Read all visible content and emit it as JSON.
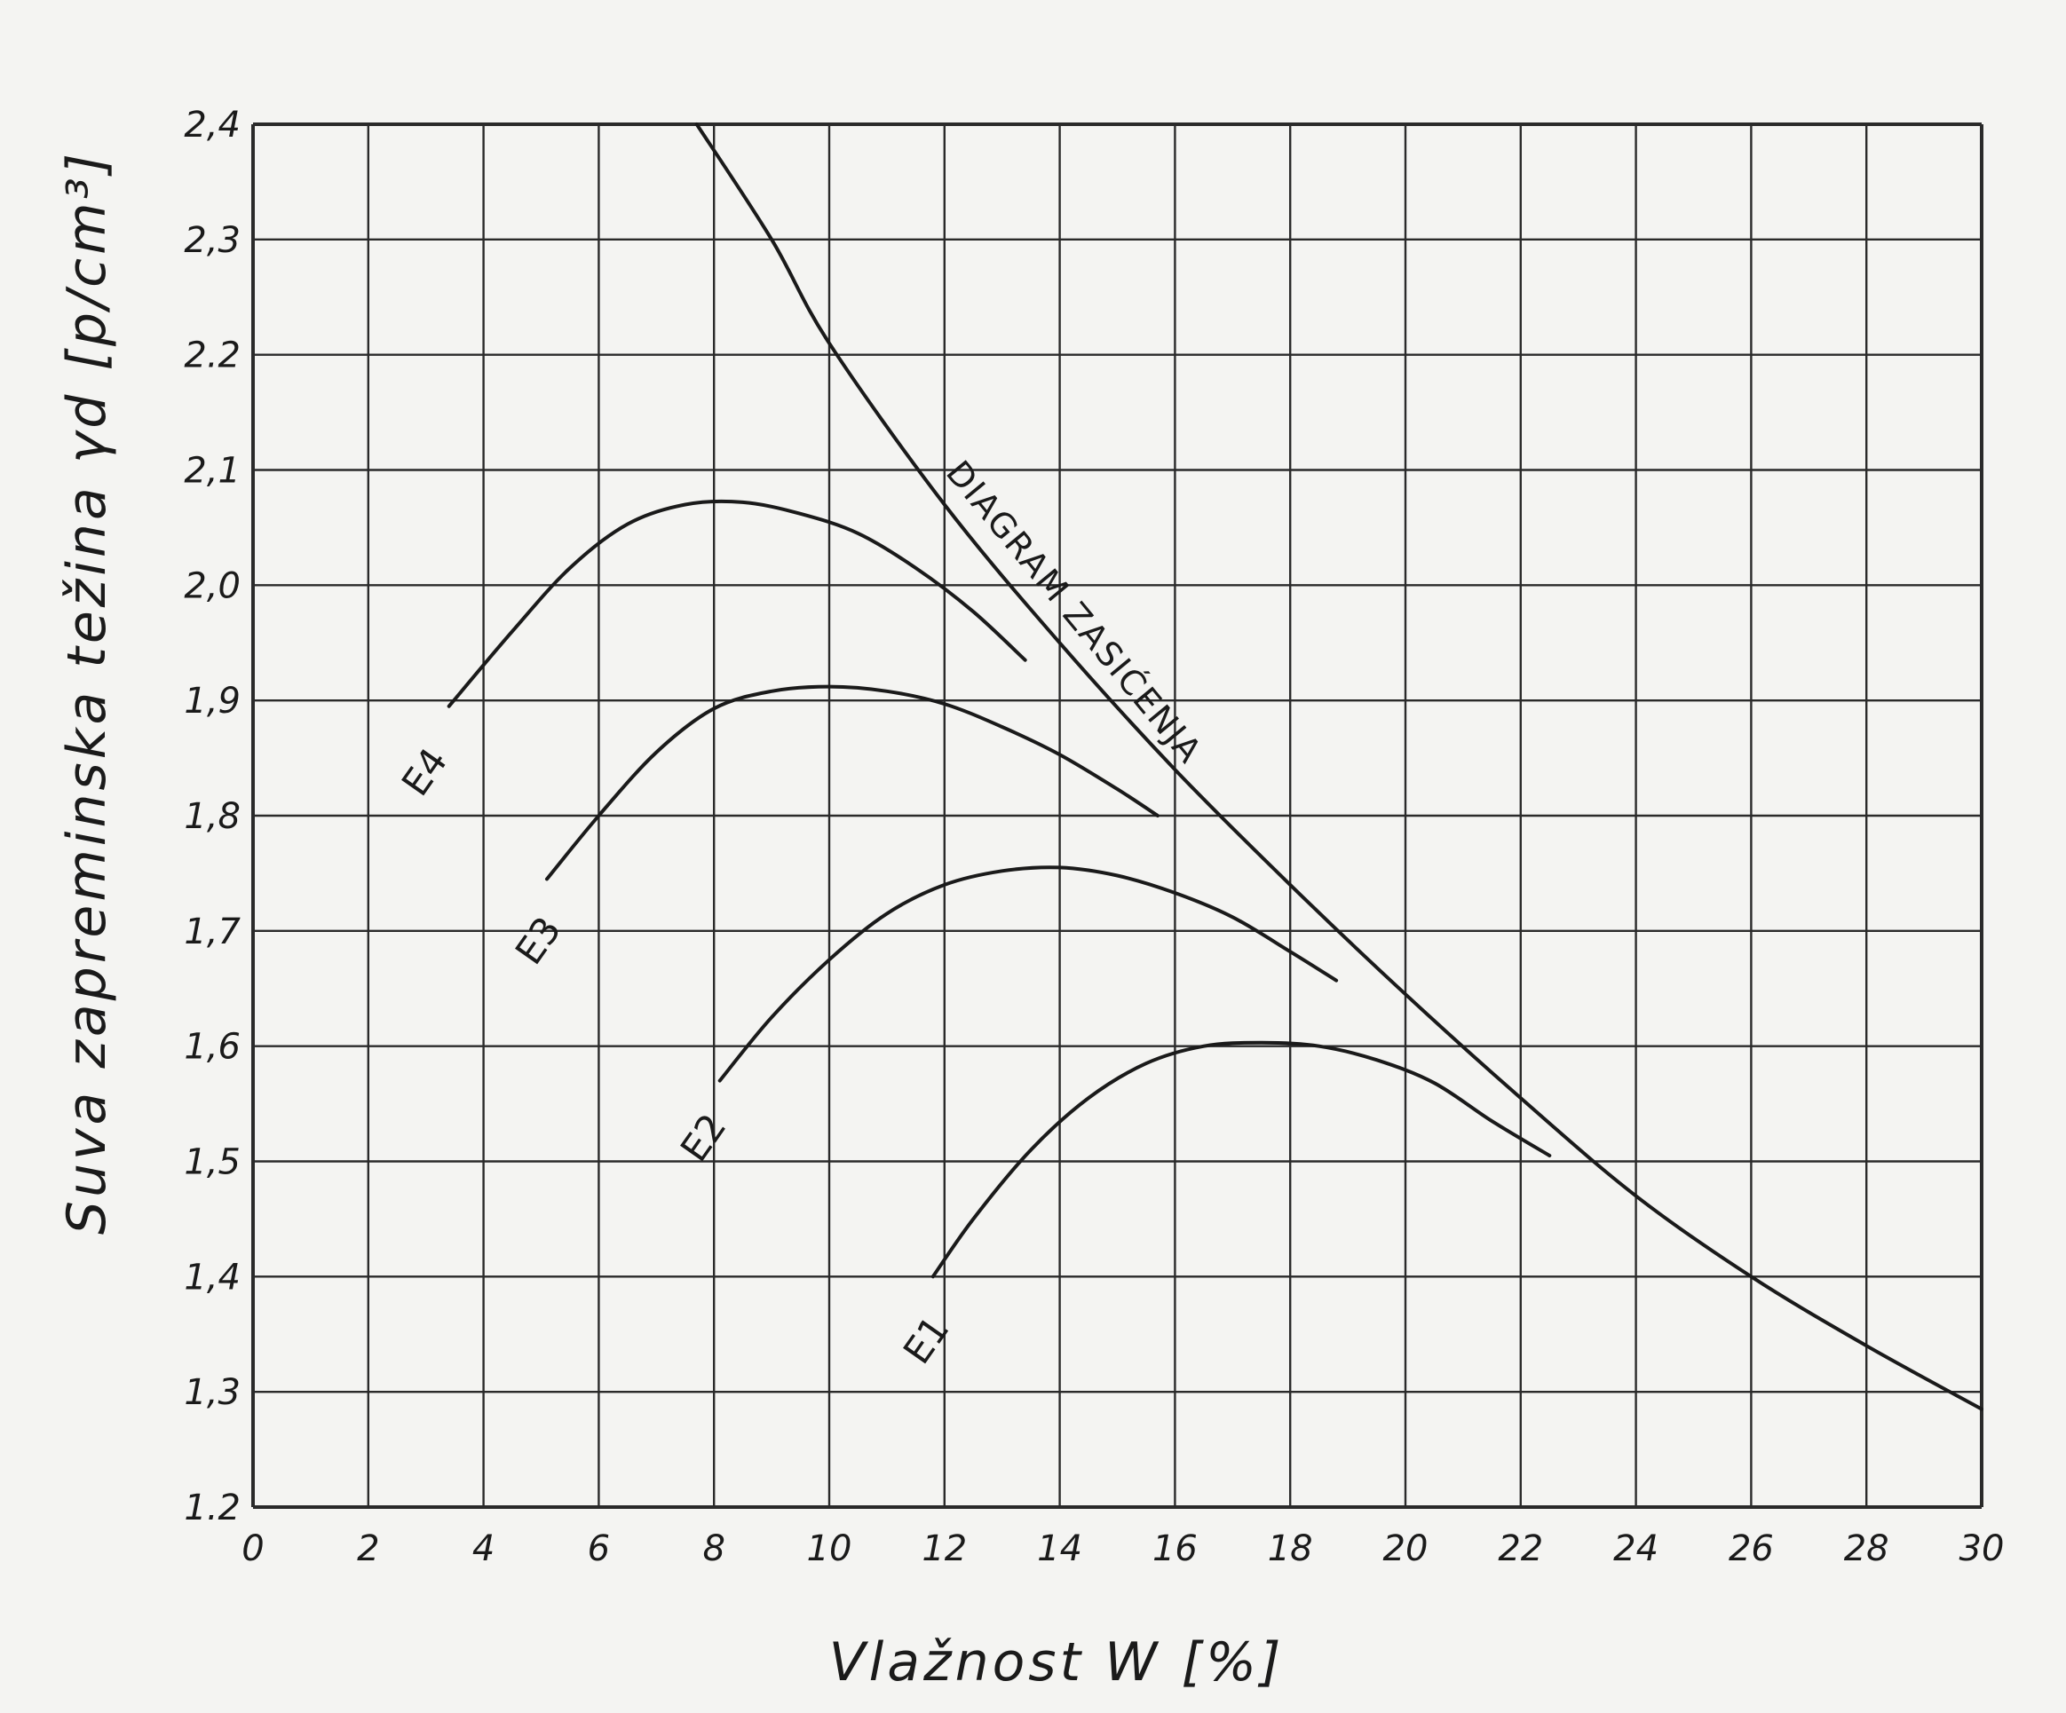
{
  "chart_data": {
    "type": "line",
    "xlabel": "Vlažnost W   [%]",
    "ylabel": "Suva zapreminska težina  γd  [p/cm³]",
    "xlim": [
      0,
      30
    ],
    "ylim": [
      1.2,
      2.4
    ],
    "grid": true,
    "x_ticks": [
      "0",
      "2",
      "4",
      "6",
      "8",
      "10",
      "12",
      "14",
      "16",
      "18",
      "20",
      "22",
      "24",
      "26",
      "28",
      "30"
    ],
    "y_ticks": [
      "1.2",
      "1,3",
      "1,4",
      "1,5",
      "1,6",
      "1,7",
      "1,8",
      "1,9",
      "2,0",
      "2,1",
      "2.2",
      "2,3",
      "2,4"
    ],
    "series": [
      {
        "name": "E4",
        "label": "E4",
        "x": [
          3.4,
          4.5,
          5.5,
          6.5,
          7.5,
          8.5,
          9.5,
          10.5,
          11.5,
          12.5,
          13.4
        ],
        "y": [
          1.895,
          1.96,
          2.015,
          2.053,
          2.07,
          2.072,
          2.062,
          2.045,
          2.015,
          1.977,
          1.935
        ]
      },
      {
        "name": "E3",
        "label": "E3",
        "x": [
          5.1,
          6.0,
          7.0,
          8.0,
          9.0,
          10.0,
          11.0,
          12.0,
          13.0,
          14.0,
          15.0,
          15.7
        ],
        "y": [
          1.745,
          1.8,
          1.855,
          1.893,
          1.908,
          1.912,
          1.908,
          1.897,
          1.877,
          1.853,
          1.823,
          1.8
        ]
      },
      {
        "name": "E2",
        "label": "E2",
        "x": [
          8.1,
          9.0,
          10.0,
          11.0,
          12.0,
          13.0,
          14.0,
          15.0,
          16.0,
          17.0,
          18.0,
          18.8
        ],
        "y": [
          1.57,
          1.625,
          1.675,
          1.715,
          1.74,
          1.752,
          1.755,
          1.748,
          1.733,
          1.712,
          1.682,
          1.657
        ]
      },
      {
        "name": "E1",
        "label": "E1",
        "x": [
          11.8,
          12.5,
          13.5,
          14.5,
          15.5,
          16.5,
          17.5,
          18.5,
          19.5,
          20.5,
          21.5,
          22.5
        ],
        "y": [
          1.4,
          1.45,
          1.51,
          1.555,
          1.585,
          1.6,
          1.603,
          1.6,
          1.588,
          1.568,
          1.535,
          1.505
        ]
      },
      {
        "name": "DIAGRAM ZASIĆENJA",
        "label": "DIAGRAM ZASIĆENJA",
        "x": [
          7.7,
          9.0,
          10.0,
          12.0,
          14.0,
          16.0,
          18.0,
          20.0,
          22.0,
          24.0,
          26.0,
          28.0,
          30.0
        ],
        "y": [
          2.4,
          2.3,
          2.21,
          2.07,
          1.95,
          1.84,
          1.74,
          1.645,
          1.555,
          1.47,
          1.4,
          1.34,
          1.285
        ]
      }
    ],
    "colors": {
      "line": "#1a1a1a",
      "grid": "#2a2a2a",
      "background": "#f4f4f2"
    }
  }
}
